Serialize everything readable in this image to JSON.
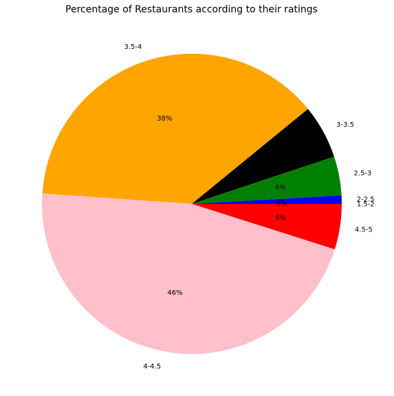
{
  "chart_data": {
    "type": "pie",
    "title": "Percentage of Restaurants according to their ratings",
    "slices": [
      {
        "label": "1.5-2",
        "percent": 0.0,
        "percent_label": "0%",
        "color": "#ff0000"
      },
      {
        "label": "2-2.5",
        "percent": 0.9,
        "percent_label": "1%",
        "color": "#0000ff"
      },
      {
        "label": "2.5-3",
        "percent": 4.2,
        "percent_label": "4%",
        "color": "#008000"
      },
      {
        "label": "3-3.5",
        "percent": 5.8,
        "percent_label": "",
        "color": "#000000"
      },
      {
        "label": "3.5-4",
        "percent": 38.0,
        "percent_label": "38%",
        "color": "#ffa500"
      },
      {
        "label": "4-4.5",
        "percent": 46.2,
        "percent_label": "46%",
        "color": "#ffc0cb"
      },
      {
        "label": "4.5-5",
        "percent": 4.9,
        "percent_label": "5%",
        "color": "#ff0000"
      }
    ],
    "start": "0 degrees (3 o'clock)",
    "direction": "counterclockwise",
    "legend": "none",
    "grid": false
  }
}
